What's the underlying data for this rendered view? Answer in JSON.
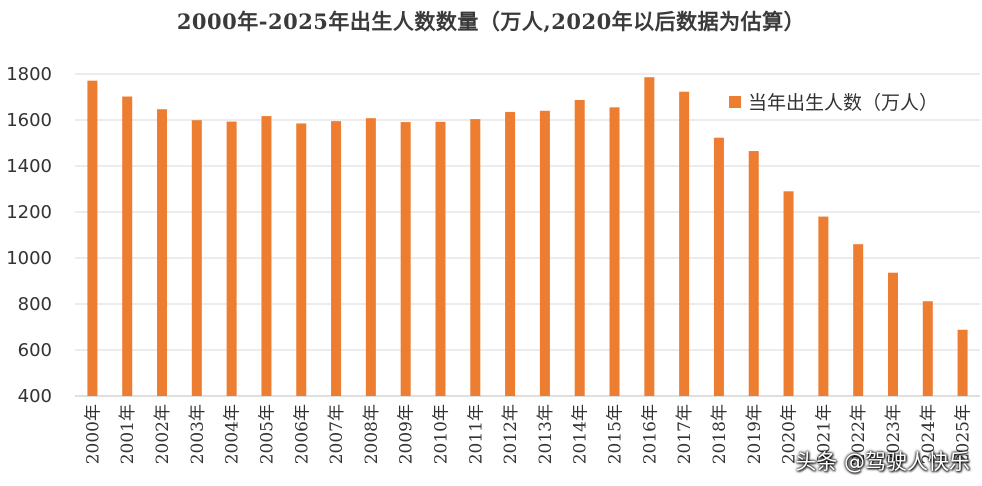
{
  "chart_data": {
    "type": "bar",
    "title": "2000年-2025年出生人数数量（万人,2020年以后数据为估算）",
    "categories": [
      "2000年",
      "2001年",
      "2002年",
      "2003年",
      "2004年",
      "2005年",
      "2006年",
      "2007年",
      "2008年",
      "2009年",
      "2010年",
      "2011年",
      "2012年",
      "2013年",
      "2014年",
      "2015年",
      "2016年",
      "2017年",
      "2018年",
      "2019年",
      "2020年",
      "2021年",
      "2022年",
      "2023年",
      "2024年",
      "2025年"
    ],
    "series": [
      {
        "name": "当年出生人数（万人）",
        "values": [
          1771,
          1702,
          1647,
          1599,
          1593,
          1617,
          1585,
          1595,
          1608,
          1591,
          1592,
          1604,
          1635,
          1640,
          1687,
          1655,
          1786,
          1723,
          1523,
          1465,
          1290,
          1180,
          1060,
          936,
          812,
          688
        ]
      }
    ],
    "ylim": [
      400,
      1800
    ],
    "yticks": [
      400,
      600,
      800,
      1000,
      1200,
      1400,
      1600,
      1800
    ],
    "grid": true,
    "legend_position": "right",
    "colors": {
      "bar": "#ED7D31",
      "grid": "#d9d9d9",
      "text": "#333333"
    }
  },
  "watermark": "头条 @驾驶人快乐"
}
